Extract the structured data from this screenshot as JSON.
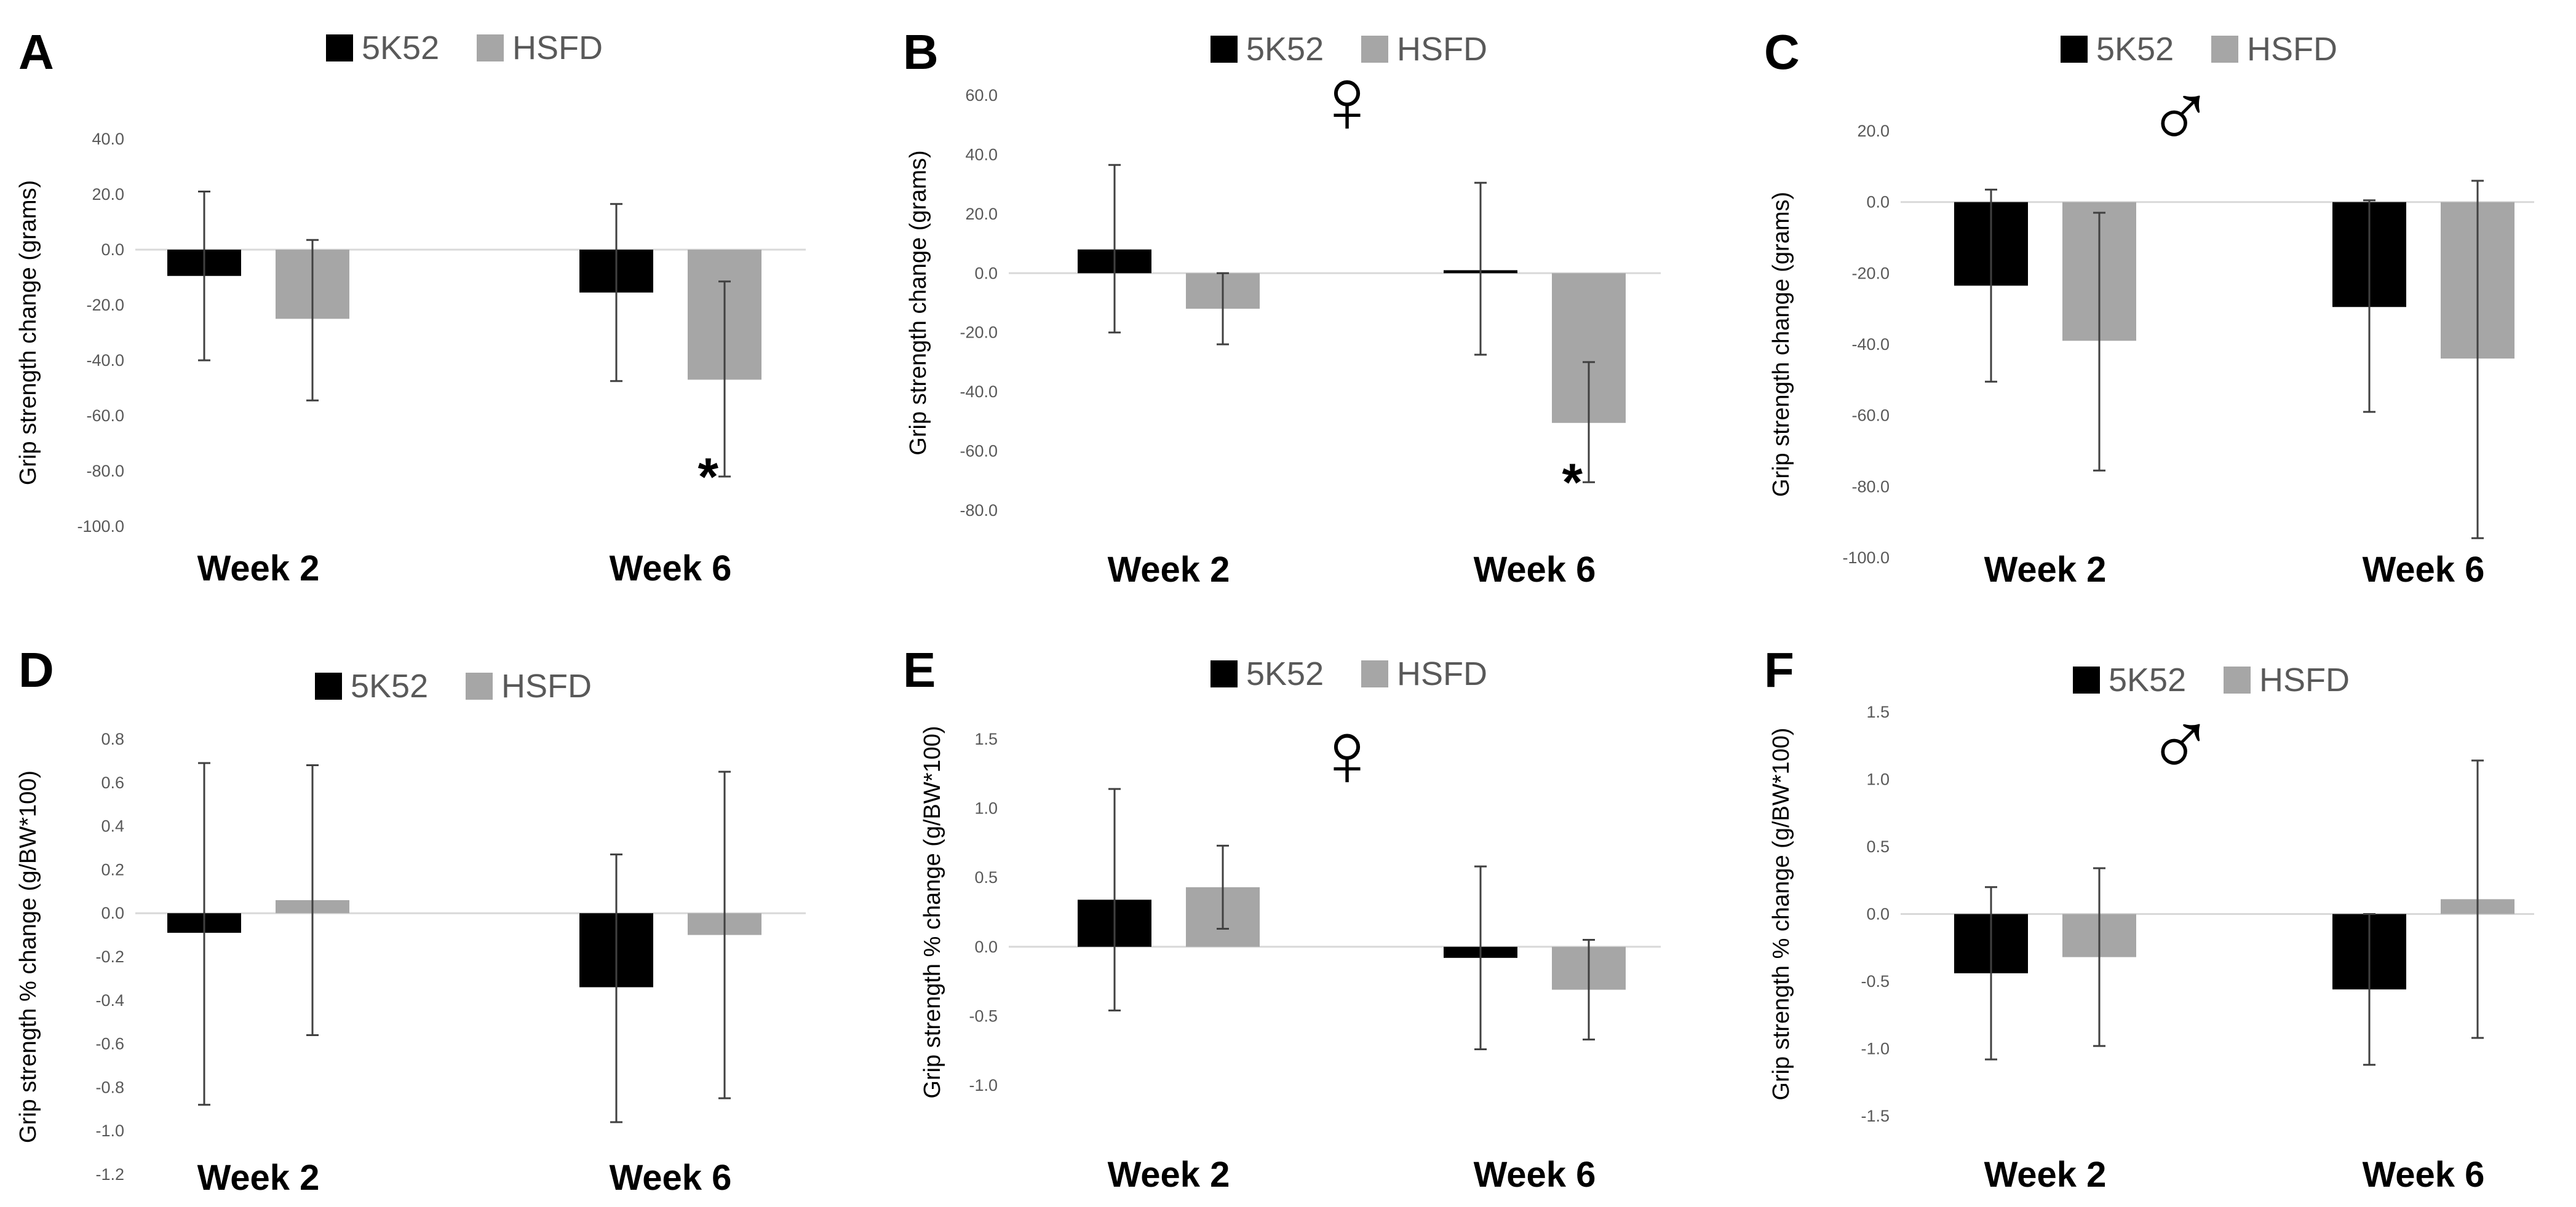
{
  "figure": {
    "colors": {
      "series_5K52": "#000000",
      "series_HSFD": "#a6a6a6",
      "axis": "#d9d9d9",
      "error": "#404040",
      "text": "#000000",
      "tick_text": "#595959",
      "legend_text": "#595959"
    }
  },
  "chart_data": [
    {
      "panel": "A",
      "type": "bar",
      "categories": [
        "Week 2",
        "Week 6"
      ],
      "series": [
        {
          "name": "5K52",
          "values": [
            -9.5,
            -15.5
          ],
          "err_low": [
            -40,
            -47.5
          ],
          "err_high": [
            21,
            16.5
          ]
        },
        {
          "name": "HSFD",
          "values": [
            -25,
            -47
          ],
          "err_low": [
            -54.5,
            -82
          ],
          "err_high": [
            3.5,
            -11.5
          ]
        }
      ],
      "ylabel": "Grip strength change (grams)",
      "ylim": [
        -100,
        40
      ],
      "yticks": [
        "40.0",
        "20.0",
        "0.0",
        "-20.0",
        "-40.0",
        "-60.0",
        "-80.0",
        "-100.0"
      ],
      "sex_symbol": "",
      "annotations": [
        {
          "text": "*",
          "category": "Week 6",
          "series": "HSFD"
        }
      ],
      "legend": [
        "5K52",
        "HSFD"
      ],
      "legend_position": "top-center",
      "grid": false
    },
    {
      "panel": "B",
      "type": "bar",
      "categories": [
        "Week 2",
        "Week 6"
      ],
      "series": [
        {
          "name": "5K52",
          "values": [
            8,
            1
          ],
          "err_low": [
            -20,
            -27.5
          ],
          "err_high": [
            36.5,
            30.5
          ]
        },
        {
          "name": "HSFD",
          "values": [
            -12,
            -50.5
          ],
          "err_low": [
            -24,
            -70.5
          ],
          "err_high": [
            0,
            -30
          ]
        }
      ],
      "ylabel": "Grip strength change (grams)",
      "ylim": [
        -80,
        60
      ],
      "yticks": [
        "60.0",
        "40.0",
        "20.0",
        "0.0",
        "-20.0",
        "-40.0",
        "-60.0",
        "-80.0"
      ],
      "sex_symbol": "♀",
      "annotations": [
        {
          "text": "*",
          "category": "Week 6",
          "series": "HSFD"
        }
      ],
      "legend": [
        "5K52",
        "HSFD"
      ],
      "legend_position": "top-center",
      "grid": false
    },
    {
      "panel": "C",
      "type": "bar",
      "categories": [
        "Week 2",
        "Week 6"
      ],
      "series": [
        {
          "name": "5K52",
          "values": [
            -23.5,
            -29.5
          ],
          "err_low": [
            -50.5,
            -59
          ],
          "err_high": [
            3.5,
            0.5
          ]
        },
        {
          "name": "HSFD",
          "values": [
            -39,
            -44
          ],
          "err_low": [
            -75.5,
            -94.5
          ],
          "err_high": [
            -3,
            6
          ]
        }
      ],
      "ylabel": "Grip strength change (grams)",
      "ylim": [
        -100,
        20
      ],
      "yticks": [
        "20.0",
        "0.0",
        "-20.0",
        "-40.0",
        "-60.0",
        "-80.0",
        "-100.0"
      ],
      "sex_symbol": "♂",
      "annotations": [],
      "legend": [
        "5K52",
        "HSFD"
      ],
      "legend_position": "top-center",
      "grid": false
    },
    {
      "panel": "D",
      "type": "bar",
      "categories": [
        "Week 2",
        "Week 6"
      ],
      "series": [
        {
          "name": "5K52",
          "values": [
            -0.09,
            -0.34
          ],
          "err_low": [
            -0.88,
            -0.96
          ],
          "err_high": [
            0.69,
            0.27
          ]
        },
        {
          "name": "HSFD",
          "values": [
            0.06,
            -0.1
          ],
          "err_low": [
            -0.56,
            -0.85
          ],
          "err_high": [
            0.68,
            0.65
          ]
        }
      ],
      "ylabel": "Grip strength % change (g/BW*100)",
      "ylim": [
        -1.2,
        0.8
      ],
      "yticks": [
        "0.8",
        "0.6",
        "0.4",
        "0.2",
        "0.0",
        "-0.2",
        "-0.4",
        "-0.6",
        "-0.8",
        "-1.0",
        "-1.2"
      ],
      "sex_symbol": "",
      "annotations": [],
      "legend": [
        "5K52",
        "HSFD"
      ],
      "legend_position": "top-center",
      "grid": false
    },
    {
      "panel": "E",
      "type": "bar",
      "categories": [
        "Week 2",
        "Week 6"
      ],
      "series": [
        {
          "name": "5K52",
          "values": [
            0.34,
            -0.08
          ],
          "err_low": [
            -0.46,
            -0.74
          ],
          "err_high": [
            1.14,
            0.58
          ]
        },
        {
          "name": "HSFD",
          "values": [
            0.43,
            -0.31
          ],
          "err_low": [
            0.13,
            -0.67
          ],
          "err_high": [
            0.73,
            0.05
          ]
        }
      ],
      "ylabel": "Grip strength % change (g/BW*100)",
      "ylim": [
        -1.0,
        1.5
      ],
      "yticks": [
        "1.5",
        "1.0",
        "0.5",
        "0.0",
        "-0.5",
        "-1.0"
      ],
      "sex_symbol": "♀",
      "annotations": [],
      "legend": [
        "5K52",
        "HSFD"
      ],
      "legend_position": "top-center",
      "grid": false
    },
    {
      "panel": "F",
      "type": "bar",
      "categories": [
        "Week 2",
        "Week 6"
      ],
      "series": [
        {
          "name": "5K52",
          "values": [
            -0.44,
            -0.56
          ],
          "err_low": [
            -1.08,
            -1.12
          ],
          "err_high": [
            0.2,
            0.0
          ]
        },
        {
          "name": "HSFD",
          "values": [
            -0.32,
            0.11
          ],
          "err_low": [
            -0.98,
            -0.92
          ],
          "err_high": [
            0.34,
            1.14
          ]
        }
      ],
      "ylabel": "Grip strength % change (g/BW*100)",
      "ylim": [
        -1.5,
        1.5
      ],
      "yticks": [
        "1.5",
        "1.0",
        "0.5",
        "0.0",
        "-0.5",
        "-1.0",
        "-1.5"
      ],
      "sex_symbol": "♂",
      "annotations": [],
      "legend": [
        "5K52",
        "HSFD"
      ],
      "legend_position": "top-center",
      "grid": false
    }
  ]
}
